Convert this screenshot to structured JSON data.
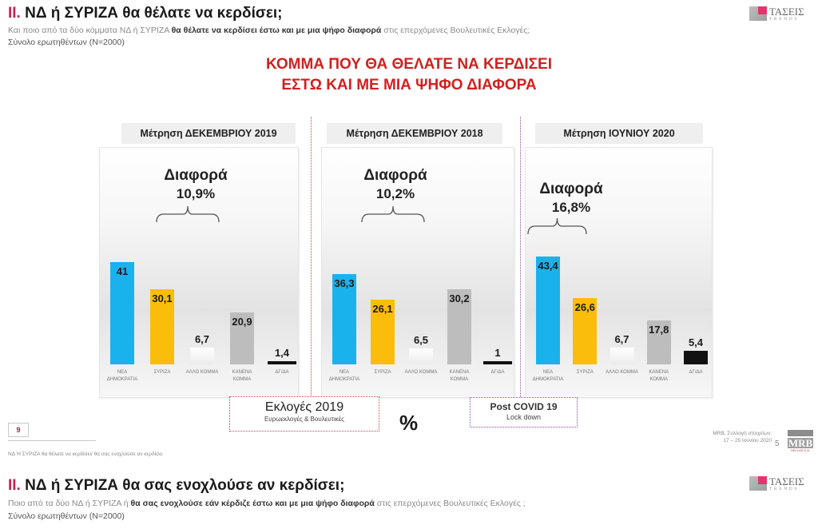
{
  "slide1": {
    "section_roman": "II.",
    "section_title": "ΝΔ  ή ΣΥΡΙΖΑ θα θέλατε να κερδίσει;",
    "question_pre": "Και ποιο από τα δύο κόμματα ΝΔ ή ΣΥΡΙΖΑ ",
    "question_bold": "θα θέλατε να κερδίσει έστω και με μια ψήφο διαφορά",
    "question_post": " στις επερχόμενες Βουλευτικές Εκλογές;",
    "sample": "Σύνολο ερωτηθέντων (N=2000)",
    "logo": {
      "name": "ΤΑΣΕΙΣ",
      "sub": "TRENDS",
      "accent": "#e6336b"
    },
    "headline_line1": "ΚΟΜΜΑ ΠΟΥ ΘΑ ΘΕΛΑΤΕ ΝΑ ΚΕΡΔΙΣΕΙ",
    "headline_line2": "ΕΣΤΩ ΚΑΙ ΜΕ ΜΙΑ ΨΗΦΟ ΔΙΑΦΟΡΑ",
    "notes": {
      "elections_title": "Εκλογές 2019",
      "elections_sub": "Ευρωεκλογές & Βουλευτικές",
      "percent_sign": "%",
      "covid_title": "Post  COVID 19",
      "covid_sub": "Lock down"
    },
    "page_box": "9",
    "footer_text": "ΝΔ Ή ΣΥΡΙΖΑ θα θέλατε να κερδίσει/ θα σας ενοχλούσε αν κερδίσει",
    "source_line1": "MRB, Συλλογή στοιχείων:",
    "source_line2": "17 – 25 Ιουνίου 2020",
    "page_number": "5",
    "mrb_logo": {
      "word": "MRB",
      "sub": "HELLAS S.A."
    }
  },
  "slide2": {
    "section_roman": "II.",
    "section_title": "ΝΔ  ή ΣΥΡΙΖΑ θα σας ενοχλούσε αν κερδίσει;",
    "question_pre": "Ποιο από τα δύο ΝΔ ή ΣΥΡΙΖΑ ή ",
    "question_bold": "θα σας ενοχλούσε εάν κέρδιζε έστω και με μια ψήφο διαφορά",
    "question_post": " στις επερχόμενες Βουλευτικές Εκλογές ;",
    "sample": "Σύνολο ερωτηθέντων (N=2000)",
    "logo": {
      "name": "ΤΑΣΕΙΣ",
      "sub": "TRENDS"
    }
  },
  "colors": {
    "nd": "#1ab2ec",
    "syriza": "#fbbd0b",
    "other": "#f4f4f4",
    "none": "#bdbdbd",
    "dk": "#111111",
    "headline": "#d0211f",
    "elections_border": "#c0454b",
    "covid_border": "#8a4e9e"
  },
  "chart_data": [
    {
      "type": "bar",
      "title": "Μέτρηση ΔΕΚΕΜΒΡΙΟΥ 2019",
      "annotation_label": "Διαφορά",
      "annotation_value": "10,9%",
      "categories": [
        "ΝΕΑ ΔΗΜΟΚΡΑΤΙΑ",
        "ΣΥΡΙΖΑ",
        "ΑΛΛΟ ΚΟΜΜΑ",
        "ΚΑΝΕΝΑ ΚΟΜΜΑ",
        "ΔΓ/ΔΑ"
      ],
      "values": [
        41,
        30.1,
        6.7,
        20.9,
        1.4
      ],
      "labels": [
        "41",
        "30,1",
        "6,7",
        "20,9",
        "1,4"
      ],
      "unit": "%",
      "ylim": [
        0,
        45
      ]
    },
    {
      "type": "bar",
      "title": "Μέτρηση ΔΕΚΕΜΒΡΙΟΥ 2018",
      "annotation_label": "Διαφορά",
      "annotation_value": "10,2%",
      "categories": [
        "ΝΕΑ ΔΗΜΟΚΡΑΤΙΑ",
        "ΣΥΡΙΖΑ",
        "ΑΛΛΟ ΚΟΜΜΑ",
        "ΚΑΝΕΝΑ ΚΟΜΜΑ",
        "ΔΓ/ΔΑ"
      ],
      "values": [
        36.3,
        26.1,
        6.5,
        30.2,
        1
      ],
      "labels": [
        "36,3",
        "26,1",
        "6,5",
        "30,2",
        "1"
      ],
      "unit": "%",
      "ylim": [
        0,
        45
      ]
    },
    {
      "type": "bar",
      "title": "Μέτρηση ΙΟΥΝΙΟΥ 2020",
      "annotation_label": "Διαφορά",
      "annotation_value": "16,8%",
      "categories": [
        "ΝΕΑ ΔΗΜΟΚΡΑΤΙΑ",
        "ΣΥΡΙΖΑ",
        "ΑΛΛΟ ΚΟΜΜΑ",
        "ΚΑΝΕΝΑ ΚΟΜΜΑ",
        "ΔΓ/ΔΑ"
      ],
      "values": [
        43.4,
        26.6,
        6.7,
        17.8,
        5.4
      ],
      "labels": [
        "43,4",
        "26,6",
        "6,7",
        "17,8",
        "5,4"
      ],
      "unit": "%",
      "ylim": [
        0,
        45
      ]
    }
  ]
}
